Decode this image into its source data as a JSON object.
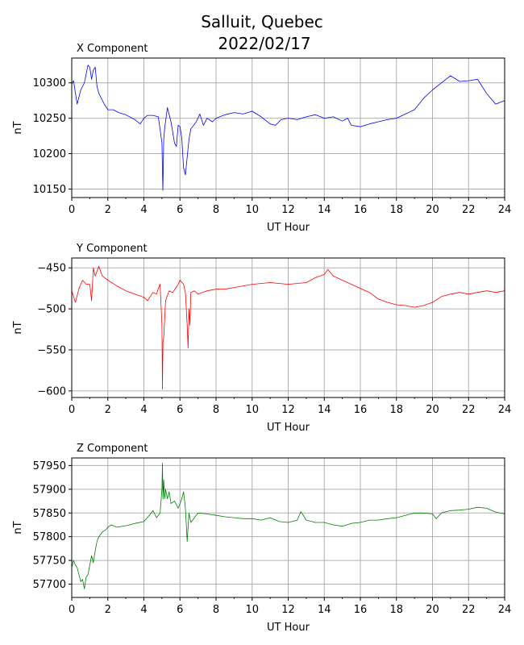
{
  "figure": {
    "title_line1": "Salluit, Quebec",
    "title_line2": "2022/02/17"
  },
  "chart_data": [
    {
      "type": "line",
      "title": "X Component",
      "xlabel": "UT Hour",
      "ylabel": "nT",
      "color": "#0000ff",
      "xlim": [
        0,
        24
      ],
      "ylim": [
        10138,
        10335
      ],
      "xticks": [
        0,
        2,
        4,
        6,
        8,
        10,
        12,
        14,
        16,
        18,
        20,
        22,
        24
      ],
      "yticks": [
        10150,
        10200,
        10250,
        10300
      ],
      "grid": true,
      "series": [
        {
          "x": [
            0,
            0.1,
            0.3,
            0.5,
            0.7,
            0.9,
            1.0,
            1.1,
            1.2,
            1.3,
            1.4,
            1.5,
            1.6,
            1.8,
            2.0,
            2.3,
            2.6,
            3.0,
            3.5,
            3.8,
            4.0,
            4.2,
            4.5,
            4.8,
            5.0,
            5.05,
            5.1,
            5.15,
            5.3,
            5.5,
            5.7,
            5.8,
            5.9,
            6.0,
            6.1,
            6.2,
            6.3,
            6.4,
            6.5,
            6.6,
            6.7,
            6.9,
            7.1,
            7.3,
            7.5,
            7.8,
            8.0,
            8.5,
            9.0,
            9.5,
            10.0,
            10.5,
            11.0,
            11.3,
            11.6,
            12.0,
            12.5,
            13.0,
            13.5,
            14.0,
            14.5,
            15.0,
            15.3,
            15.5,
            16.0,
            16.5,
            17.0,
            17.5,
            18.0,
            18.5,
            19.0,
            19.5,
            20.0,
            20.5,
            21.0,
            21.5,
            22.0,
            22.5,
            23.0,
            23.5,
            24.0
          ],
          "y": [
            10298,
            10303,
            10270,
            10290,
            10300,
            10325,
            10322,
            10305,
            10318,
            10322,
            10295,
            10285,
            10280,
            10270,
            10262,
            10262,
            10258,
            10255,
            10248,
            10242,
            10250,
            10254,
            10254,
            10252,
            10215,
            10148,
            10220,
            10235,
            10265,
            10245,
            10215,
            10210,
            10240,
            10238,
            10222,
            10180,
            10170,
            10195,
            10220,
            10235,
            10238,
            10245,
            10256,
            10240,
            10250,
            10245,
            10250,
            10255,
            10258,
            10256,
            10260,
            10252,
            10242,
            10240,
            10248,
            10250,
            10248,
            10252,
            10255,
            10250,
            10252,
            10246,
            10250,
            10240,
            10238,
            10242,
            10245,
            10248,
            10250,
            10256,
            10262,
            10278,
            10290,
            10300,
            10310,
            10302,
            10303,
            10305,
            10285,
            10270,
            10275
          ]
        }
      ]
    },
    {
      "type": "line",
      "title": "Y Component",
      "xlabel": "UT Hour",
      "ylabel": "nT",
      "color": "#ff0000",
      "xlim": [
        0,
        24
      ],
      "ylim": [
        -608,
        -438
      ],
      "xticks": [
        0,
        2,
        4,
        6,
        8,
        10,
        12,
        14,
        16,
        18,
        20,
        22,
        24
      ],
      "yticks": [
        -450,
        -500,
        -550,
        -600
      ],
      "grid": true,
      "series": [
        {
          "x": [
            0,
            0.2,
            0.4,
            0.6,
            0.8,
            1.0,
            1.1,
            1.2,
            1.3,
            1.5,
            1.7,
            2.0,
            2.5,
            3.0,
            3.5,
            4.0,
            4.2,
            4.5,
            4.7,
            4.8,
            4.9,
            5.0,
            5.03,
            5.06,
            5.1,
            5.2,
            5.4,
            5.6,
            5.9,
            6.0,
            6.2,
            6.3,
            6.4,
            6.45,
            6.5,
            6.55,
            6.6,
            6.8,
            7.0,
            7.5,
            8.0,
            8.5,
            9.0,
            10.0,
            11.0,
            12.0,
            13.0,
            13.5,
            14.0,
            14.2,
            14.5,
            15.0,
            15.5,
            16.0,
            16.5,
            17.0,
            17.5,
            18.0,
            18.5,
            19.0,
            19.5,
            20.0,
            20.5,
            21.0,
            21.5,
            22.0,
            22.5,
            23.0,
            23.5,
            24.0
          ],
          "y": [
            -478,
            -492,
            -475,
            -465,
            -470,
            -470,
            -490,
            -450,
            -460,
            -448,
            -460,
            -465,
            -472,
            -478,
            -482,
            -486,
            -490,
            -480,
            -482,
            -475,
            -470,
            -520,
            -598,
            -540,
            -535,
            -490,
            -478,
            -480,
            -470,
            -465,
            -470,
            -480,
            -520,
            -548,
            -500,
            -520,
            -480,
            -478,
            -482,
            -478,
            -476,
            -476,
            -474,
            -470,
            -468,
            -470,
            -468,
            -462,
            -458,
            -452,
            -460,
            -465,
            -470,
            -475,
            -480,
            -488,
            -492,
            -495,
            -496,
            -498,
            -496,
            -492,
            -485,
            -482,
            -480,
            -482,
            -480,
            -478,
            -480,
            -478
          ]
        }
      ]
    },
    {
      "type": "line",
      "title": "Z Component",
      "xlabel": "UT Hour",
      "ylabel": "nT",
      "color": "#008000",
      "xlim": [
        0,
        24
      ],
      "ylim": [
        57672,
        57966
      ],
      "xticks": [
        0,
        2,
        4,
        6,
        8,
        10,
        12,
        14,
        16,
        18,
        20,
        22,
        24
      ],
      "yticks": [
        57700,
        57750,
        57800,
        57850,
        57900,
        57950
      ],
      "grid": true,
      "series": [
        {
          "x": [
            0,
            0.1,
            0.2,
            0.3,
            0.4,
            0.5,
            0.6,
            0.7,
            0.8,
            0.9,
            1.0,
            1.1,
            1.2,
            1.3,
            1.4,
            1.5,
            1.7,
            1.9,
            2.0,
            2.2,
            2.5,
            3.0,
            3.5,
            4.0,
            4.3,
            4.5,
            4.7,
            4.9,
            5.0,
            5.03,
            5.06,
            5.1,
            5.15,
            5.2,
            5.3,
            5.4,
            5.5,
            5.7,
            5.9,
            6.0,
            6.1,
            6.2,
            6.3,
            6.4,
            6.5,
            6.6,
            6.8,
            7.0,
            7.5,
            8.0,
            8.5,
            9.0,
            9.5,
            10.0,
            10.5,
            11.0,
            11.5,
            12.0,
            12.5,
            12.7,
            13.0,
            13.5,
            14.0,
            14.5,
            15.0,
            15.5,
            16.0,
            16.5,
            17.0,
            17.5,
            18.0,
            18.5,
            19.0,
            19.5,
            20.0,
            20.2,
            20.5,
            21.0,
            21.5,
            22.0,
            22.5,
            23.0,
            23.5,
            24.0
          ],
          "y": [
            57735,
            57750,
            57740,
            57735,
            57720,
            57705,
            57710,
            57690,
            57715,
            57720,
            57740,
            57760,
            57745,
            57770,
            57790,
            57800,
            57810,
            57815,
            57820,
            57825,
            57820,
            57823,
            57828,
            57832,
            57845,
            57855,
            57840,
            57850,
            57900,
            57955,
            57880,
            57920,
            57880,
            57900,
            57880,
            57895,
            57870,
            57875,
            57860,
            57870,
            57880,
            57895,
            57860,
            57790,
            57850,
            57830,
            57840,
            57850,
            57848,
            57845,
            57842,
            57840,
            57838,
            57838,
            57835,
            57840,
            57832,
            57830,
            57835,
            57853,
            57835,
            57830,
            57830,
            57825,
            57822,
            57828,
            57830,
            57835,
            57835,
            57838,
            57840,
            57845,
            57850,
            57850,
            57848,
            57838,
            57850,
            57855,
            57856,
            57858,
            57862,
            57860,
            57852,
            57848
          ]
        }
      ]
    }
  ]
}
